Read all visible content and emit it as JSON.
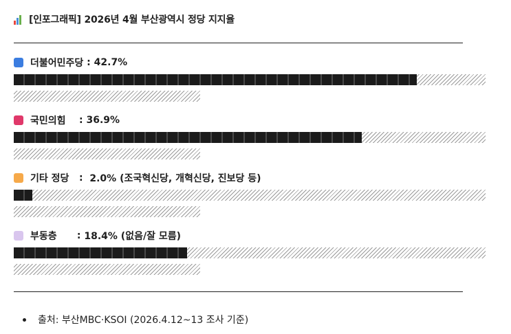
{
  "title": {
    "icon": "bar-chart-icon",
    "text": "[인포그래픽] 2026년 4월 부산광역시 정당 지지율"
  },
  "parties": [
    {
      "name": "더불어민주당",
      "separator": " : ",
      "value_text": "42.7%",
      "value": 42.7,
      "color": "#3b7de0",
      "icon": "blue-square-icon"
    },
    {
      "name": "국민의힘",
      "separator": "    : ",
      "value_text": "36.9%",
      "value": 36.9,
      "color": "#e0386a",
      "icon": "red-square-icon"
    },
    {
      "name": "기타 정당",
      "separator": "   :  ",
      "value_text": "2.0% (조국혁신당, 개혁신당, 진보당 등)",
      "value": 2.0,
      "color": "#f6a94a",
      "icon": "orange-square-icon"
    },
    {
      "name": "부동층",
      "separator": "      : ",
      "value_text": "18.4% (없음/잘 모름)",
      "value": 18.4,
      "color": "#d9c6ee",
      "icon": "purple-square-icon"
    }
  ],
  "source": {
    "text": "출처: 부산MBC·KSOI (2026.4.12~13 조사 기준)"
  }
}
